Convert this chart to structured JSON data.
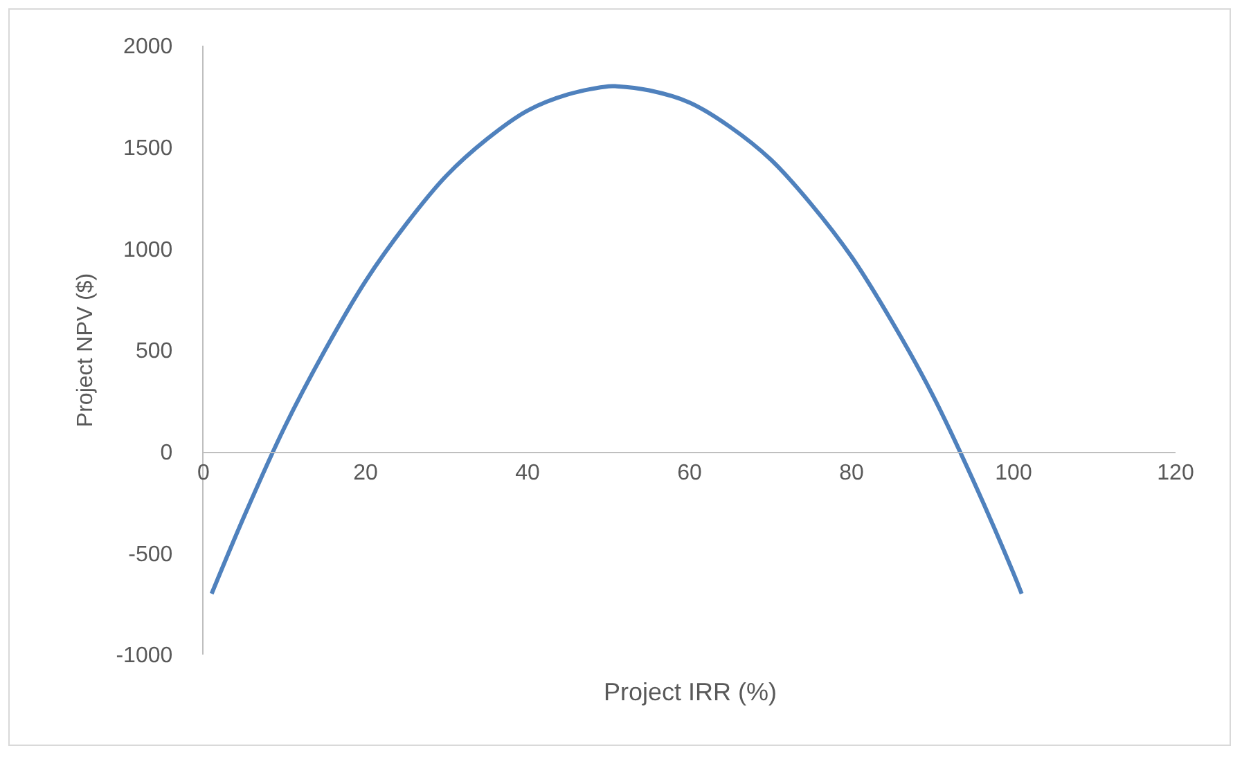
{
  "chart_data": {
    "type": "line",
    "xlabel": "Project IRR (%)",
    "ylabel": "Project NPV ($)",
    "x": [
      1,
      5,
      10,
      15,
      20,
      25,
      30,
      35,
      40,
      45,
      50,
      51,
      55,
      60,
      65,
      70,
      75,
      80,
      85,
      90,
      95,
      100,
      101
    ],
    "series": [
      {
        "color": "#4f81bd",
        "values": [
          -700,
          -320,
          120,
          500,
          840,
          1120,
          1360,
          1540,
          1680,
          1760,
          1800,
          1800,
          1780,
          1720,
          1600,
          1440,
          1220,
          960,
          640,
          280,
          -140,
          -600,
          -700
        ]
      }
    ],
    "xlim": [
      0,
      120
    ],
    "xticks": [
      0,
      20,
      40,
      60,
      80,
      100,
      120
    ],
    "ylim": [
      -1000,
      2000
    ],
    "yticks": [
      -1000,
      -500,
      0,
      500,
      1000,
      1500,
      2000
    ],
    "grid": false,
    "marker": "none",
    "line_style": "solid"
  }
}
